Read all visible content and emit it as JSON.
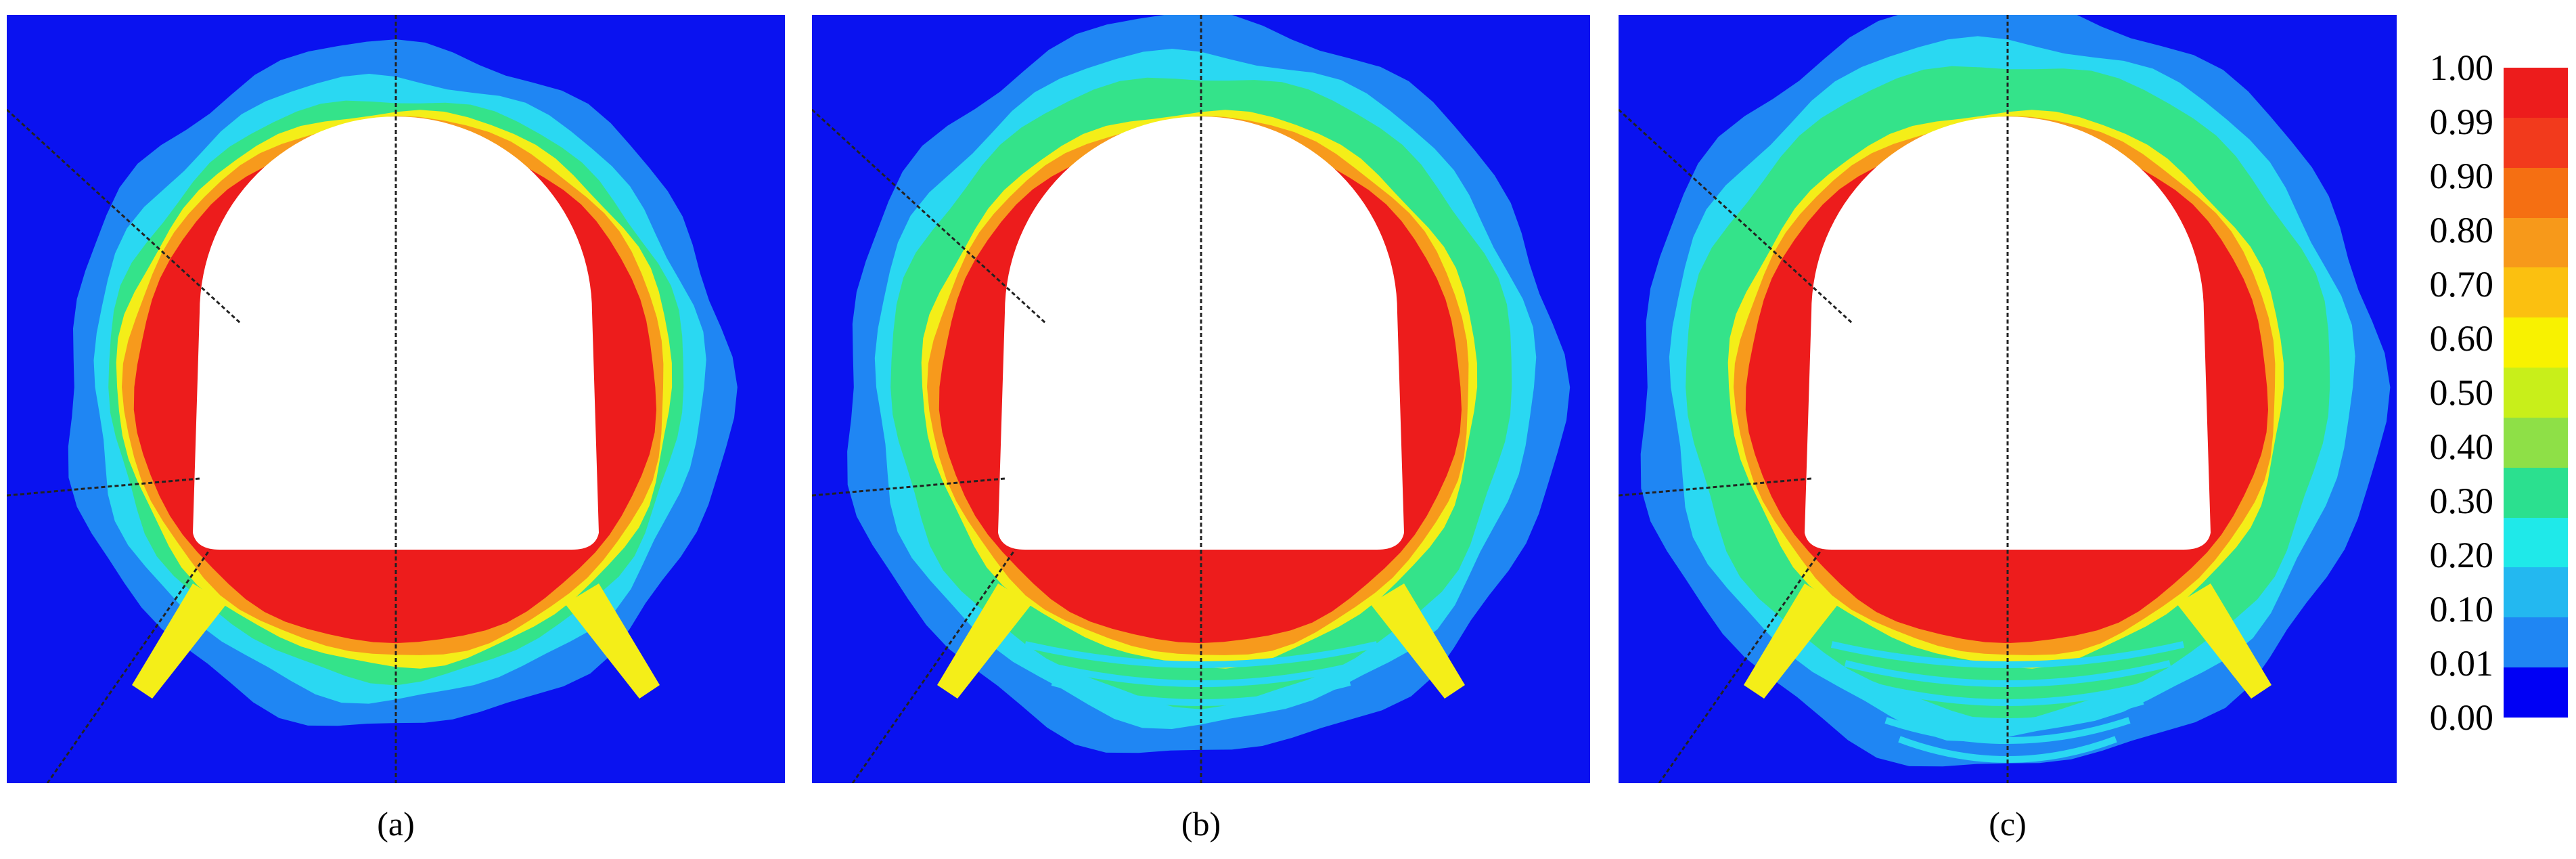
{
  "panels": [
    {
      "id": "a",
      "caption": "(a)",
      "spread": 1.0,
      "bands": 0
    },
    {
      "id": "b",
      "caption": "(b)",
      "spread": 1.08,
      "bands": 1
    },
    {
      "id": "c",
      "caption": "(c)",
      "spread": 1.12,
      "bands": 2
    }
  ],
  "legend": {
    "ticks": [
      "1.00",
      "0.99",
      "0.90",
      "0.80",
      "0.70",
      "0.60",
      "0.50",
      "0.40",
      "0.30",
      "0.20",
      "0.10",
      "0.01",
      "0.00"
    ],
    "colors": [
      "#ed1c1c",
      "#f23a1c",
      "#f56f12",
      "#f7991a",
      "#fbc010",
      "#f8f200",
      "#c8ef1a",
      "#8ee047",
      "#2be08f",
      "#1fe9e9",
      "#23b8f0",
      "#1f86f3",
      "#0000f5"
    ]
  },
  "colors": {
    "background": "#0a12f0",
    "outer": "#1f86f3",
    "cyan": "#2ad8f2",
    "green": "#34e38a",
    "yellow": "#f4ee18",
    "orange": "#f79a1c",
    "red": "#ed1c1c",
    "opening": "#ffffff"
  }
}
